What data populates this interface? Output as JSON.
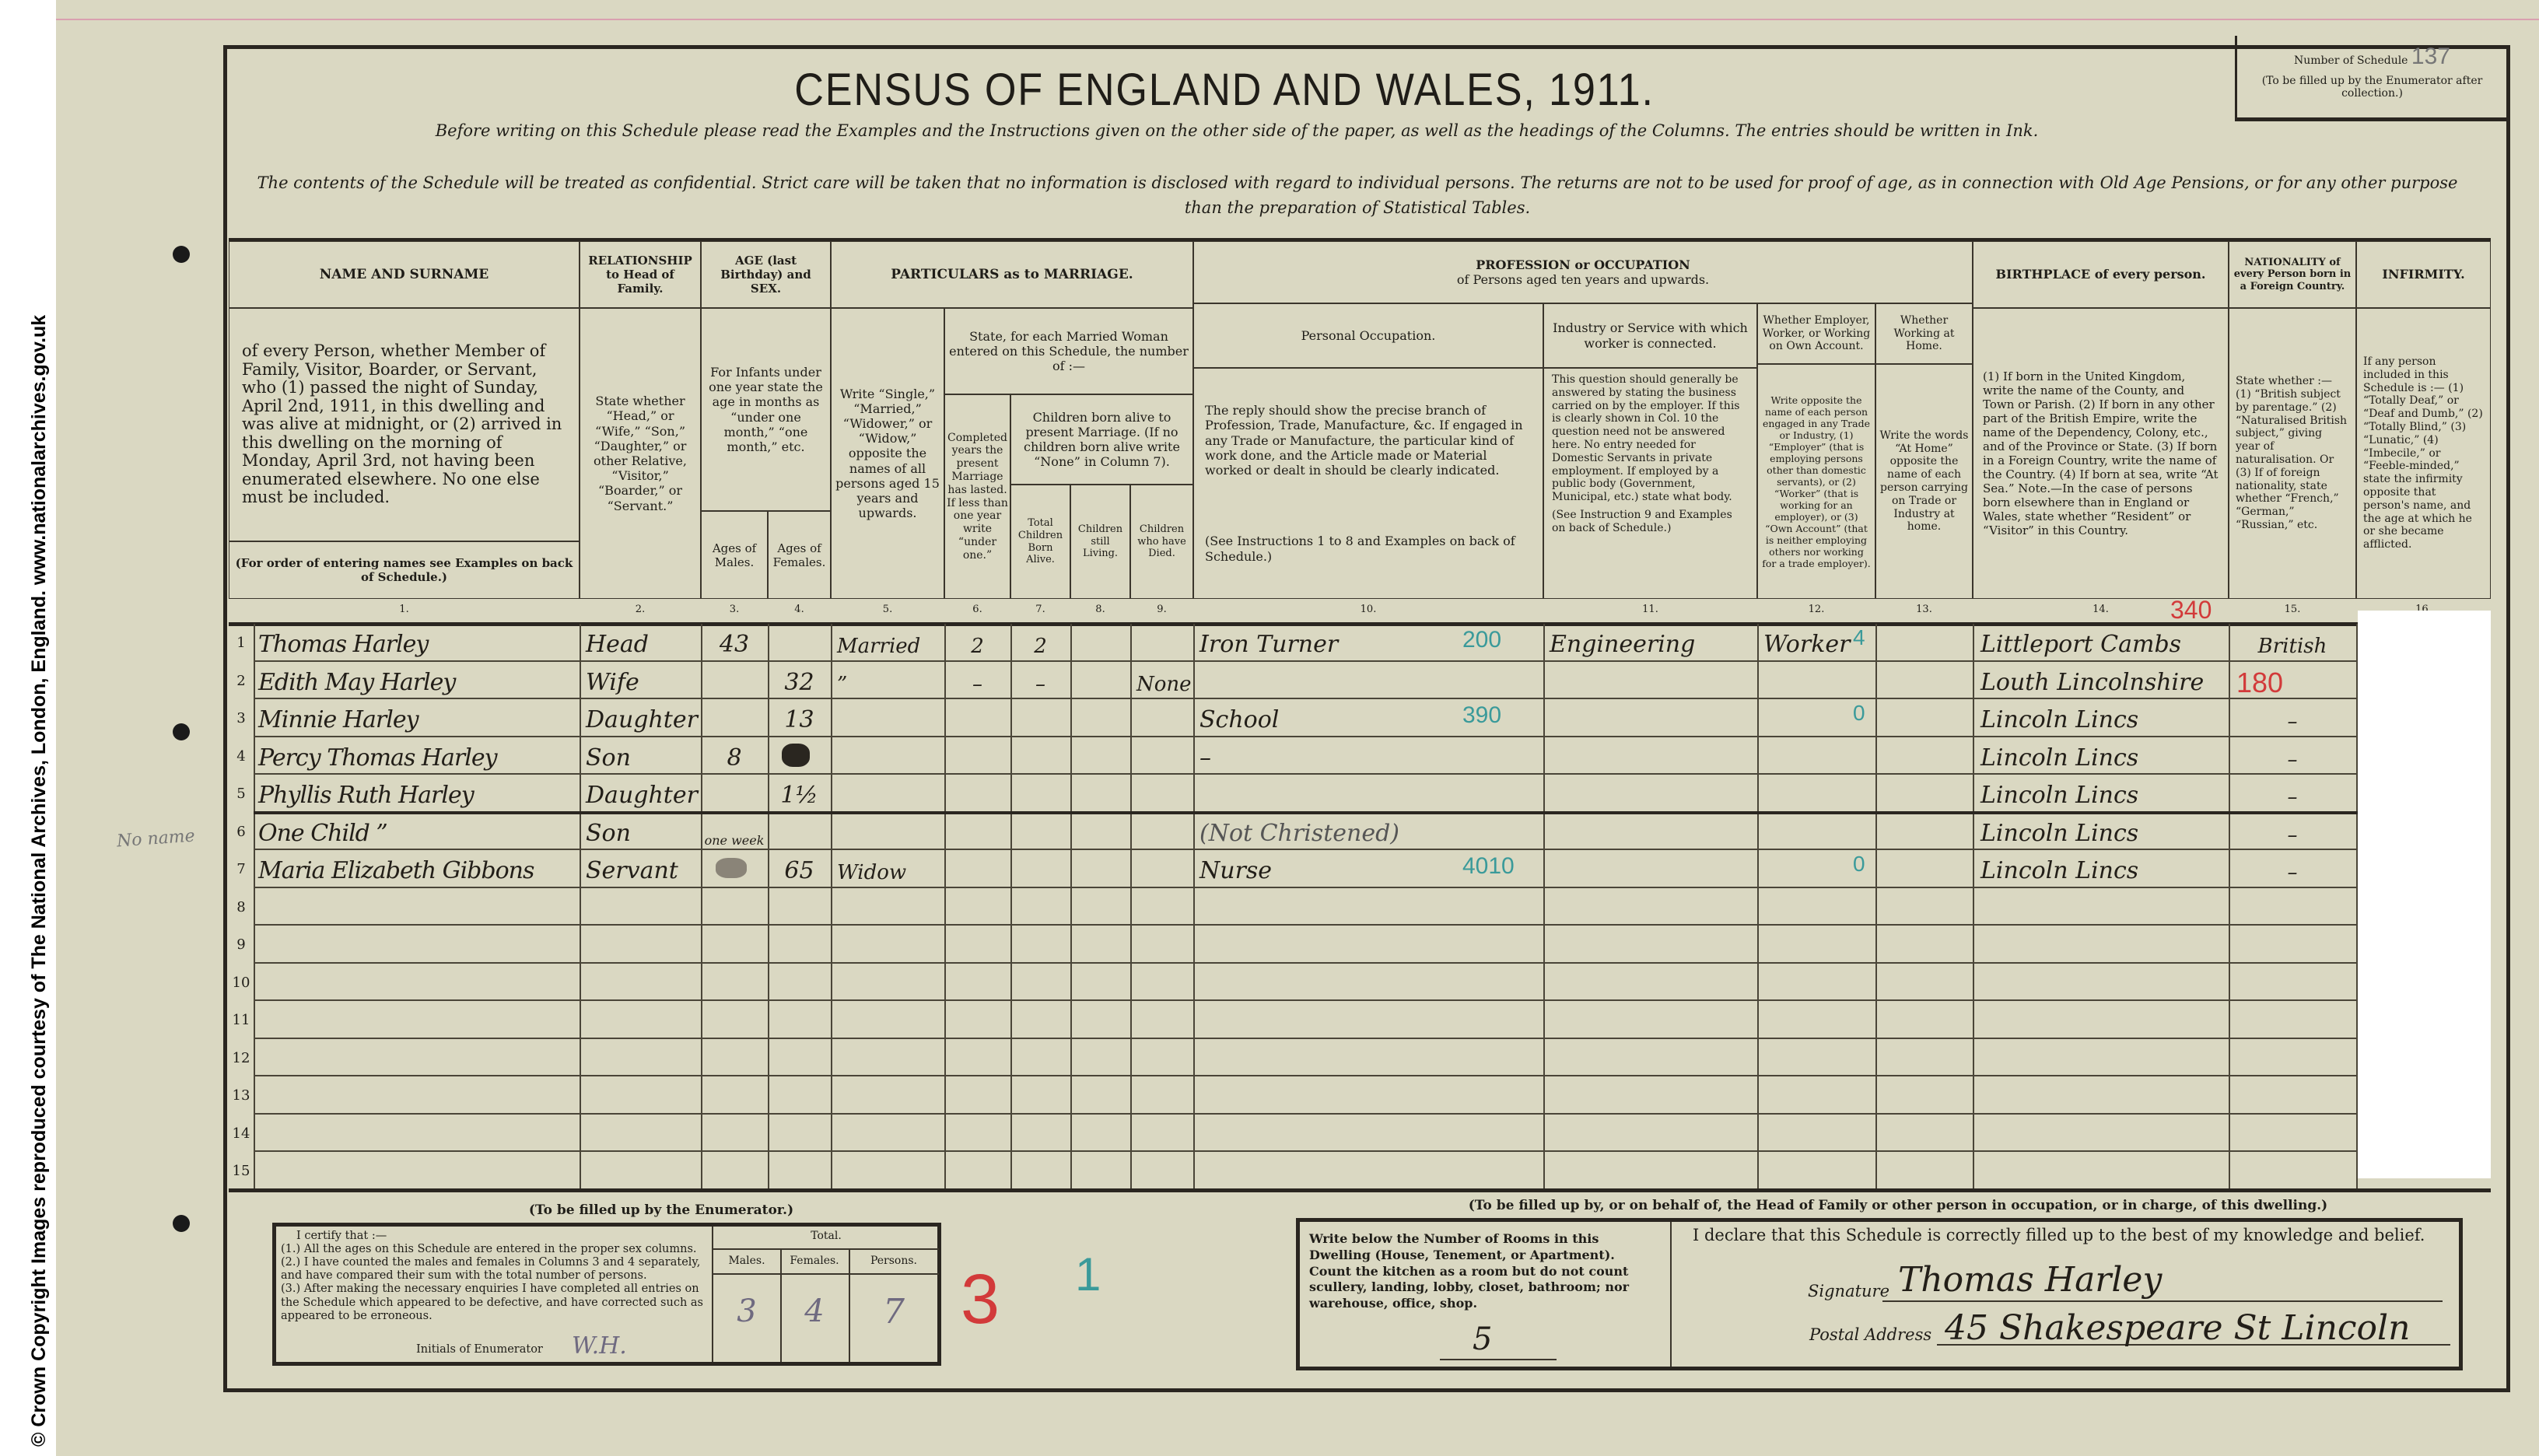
{
  "copyright": "© Crown Copyright Images reproduced courtesy of The National Archives, London, England. www.nationalarchives.gov.uk",
  "header": {
    "title": "CENSUS OF ENGLAND AND WALES, 1911.",
    "instruction_1": "Before writing on this Schedule please read the Examples and the Instructions given on the other side of the paper, as well as the headings of the Columns. The entries should be written in Ink.",
    "instruction_2": "The contents of the Schedule will be treated as confidential. Strict care will be taken that no information is disclosed with regard to individual persons. The returns are not to be used for proof of age, as in connection with Old Age Pensions, or for any other purpose than the preparation of Statistical Tables.",
    "schedule_number_label": "Number of Schedule",
    "schedule_number_value": "137",
    "schedule_number_note": "(To be filled up by the Enumerator after collection.)"
  },
  "columns": {
    "name_title": "NAME AND SURNAME",
    "name_desc": "of every Person, whether Member of Family, Visitor, Boarder, or Servant, who (1) passed the night of Sunday, April 2nd, 1911, in this dwelling and was alive at midnight, or (2) arrived in this dwelling on the morning of Monday, April 3rd, not having been enumerated elsewhere. No one else must be included.",
    "name_note": "(For order of entering names see Examples on back of Schedule.)",
    "relationship_title": "RELATIONSHIP to Head of Family.",
    "relationship_desc": "State whether “Head,” or “Wife,” “Son,” “Daughter,” or other Relative, “Visitor,” “Boarder,” or “Servant.”",
    "age_title": "AGE (last Birthday) and SEX.",
    "age_desc": "For Infants under one year state the age in months as “under one month,” “one month,” etc.",
    "age_males": "Ages of Males.",
    "age_females": "Ages of Females.",
    "marriage_title": "PARTICULARS as to MARRIAGE.",
    "marriage_write": "Write “Single,” “Married,” “Widower,” or “Widow,” opposite the names of all persons aged 15 years and upwards.",
    "marriage_state": "State, for each Married Woman entered on this Schedule, the number of :—",
    "marriage_completed": "Completed years the present Marriage has lasted. If less than one year write “under one.”",
    "marriage_children": "Children born alive to present Marriage. (If no children born alive write “None” in Column 7).",
    "children_total": "Total Children Born Alive.",
    "children_living": "Children still Living.",
    "children_died": "Children who have Died.",
    "profession_title": "PROFESSION or OCCUPATION",
    "profession_sub": "of Persons aged ten years and upwards.",
    "personal_occupation": "Personal Occupation.",
    "personal_occupation_desc": "The reply should show the precise branch of Profession, Trade, Manufacture, &c. If engaged in any Trade or Manufacture, the particular kind of work done, and the Article made or Material worked or dealt in should be clearly indicated.",
    "personal_occupation_note": "(See Instructions 1 to 8 and Examples on back of Schedule.)",
    "industry": "Industry or Service with which worker is connected.",
    "industry_desc": "This question should generally be answered by stating the business carried on by the employer. If this is clearly shown in Col. 10 the question need not be answered here. No entry needed for Domestic Servants in private employment. If employed by a public body (Government, Municipal, etc.) state what body.",
    "industry_note": "(See Instruction 9 and Examples on back of Schedule.)",
    "employer": "Whether Employer, Worker, or Working on Own Account.",
    "employer_desc": "Write opposite the name of each person engaged in any Trade or Industry, (1) “Employer” (that is employing persons other than domestic servants), or (2) “Worker” (that is working for an employer), or (3) “Own Account” (that is neither employing others nor working for a trade employer).",
    "at_home": "Whether Working at Home.",
    "at_home_desc": "Write the words “At Home” opposite the name of each person carrying on Trade or Industry at home.",
    "birthplace_title": "BIRTHPLACE of every person.",
    "birthplace_desc": "(1) If born in the United Kingdom, write the name of the County, and Town or Parish. (2) If born in any other part of the British Empire, write the name of the Dependency, Colony, etc., and of the Province or State. (3) If born in a Foreign Country, write the name of the Country. (4) If born at sea, write “At Sea.” Note.—In the case of persons born elsewhere than in England or Wales, state whether “Resident” or “Visitor” in this Country.",
    "nationality_title": "NATIONALITY of every Person born in a Foreign Country.",
    "nationality_desc": "State whether :— (1) “British subject by parentage.” (2) “Naturalised British subject,” giving year of naturalisation. Or (3) If of foreign nationality, state whether “French,” “German,” “Russian,” etc.",
    "infirmity_title": "INFIRMITY.",
    "infirmity_desc": "If any person included in this Schedule is :— (1) “Totally Deaf,” or “Deaf and Dumb,” (2) “Totally Blind,” (3) “Lunatic,” (4) “Imbecile,” or “Feeble-minded,” state the infirmity opposite that person's name, and the age at which he or she became afflicted.",
    "numbers": [
      "1.",
      "2.",
      "3.",
      "4.",
      "5.",
      "6.",
      "7.",
      "8.",
      "9.",
      "10.",
      "11.",
      "12.",
      "13.",
      "14.",
      "15.",
      "16."
    ]
  },
  "row_numbers": [
    "1",
    "2",
    "3",
    "4",
    "5",
    "6",
    "7",
    "8",
    "9",
    "10",
    "11",
    "12",
    "13",
    "14",
    "15"
  ],
  "rows": [
    {
      "name": "Thomas Harley",
      "relationship": "Head",
      "age_male": "43",
      "age_female": "",
      "marriage": "Married",
      "years_married": "2",
      "children_born": "2",
      "children_living": "",
      "children_died": "",
      "occupation": "Iron Turner",
      "occupation_code": "200",
      "industry": "Engineering",
      "employment": "Worker",
      "employment_code": "4",
      "at_home": "",
      "birthplace": "Littleport Cambs",
      "birthplace_code": "340",
      "nationality": "British",
      "infirmity": ""
    },
    {
      "name": "Edith May Harley",
      "relationship": "Wife",
      "age_male": "",
      "age_female": "32",
      "marriage": "”",
      "years_married": "–",
      "children_born": "–",
      "children_living": "",
      "children_died": "None",
      "occupation": "",
      "occupation_code": "",
      "industry": "",
      "employment": "",
      "employment_code": "",
      "at_home": "",
      "birthplace": "Louth Lincolnshire",
      "birthplace_code": "180",
      "nationality": "",
      "infirmity": ""
    },
    {
      "name": "Minnie Harley",
      "relationship": "Daughter",
      "age_male": "",
      "age_female": "13",
      "marriage": "",
      "years_married": "",
      "children_born": "",
      "children_living": "",
      "children_died": "",
      "occupation": "School",
      "occupation_code": "390",
      "industry": "",
      "employment": "",
      "employment_code": "0",
      "at_home": "",
      "birthplace": "Lincoln Lincs",
      "birthplace_code": "",
      "nationality": "–",
      "infirmity": ""
    },
    {
      "name": "Percy Thomas Harley",
      "relationship": "Son",
      "age_male": "8",
      "age_female": "",
      "marriage": "",
      "years_married": "",
      "children_born": "",
      "children_living": "",
      "children_died": "",
      "occupation": "–",
      "occupation_code": "",
      "industry": "",
      "employment": "",
      "employment_code": "",
      "at_home": "",
      "birthplace": "Lincoln Lincs",
      "birthplace_code": "",
      "nationality": "–",
      "infirmity": ""
    },
    {
      "name": "Phyllis Ruth Harley",
      "relationship": "Daughter",
      "age_male": "",
      "age_female": "1½",
      "marriage": "",
      "years_married": "",
      "children_born": "",
      "children_living": "",
      "children_died": "",
      "occupation": "",
      "occupation_code": "",
      "industry": "",
      "employment": "",
      "employment_code": "",
      "at_home": "",
      "birthplace": "Lincoln Lincs",
      "birthplace_code": "",
      "nationality": "–",
      "infirmity": ""
    },
    {
      "name": "One Child ”",
      "relationship": "Son",
      "age_male": "one week",
      "age_female": "",
      "marriage": "",
      "years_married": "",
      "children_born": "",
      "children_living": "",
      "children_died": "",
      "occupation": "(Not Christened)",
      "occupation_code": "",
      "industry": "",
      "employment": "",
      "employment_code": "",
      "at_home": "",
      "birthplace": "Lincoln Lincs",
      "birthplace_code": "",
      "nationality": "–",
      "infirmity": ""
    },
    {
      "name": "Maria Elizabeth Gibbons",
      "relationship": "Servant",
      "age_male": "",
      "age_female": "65",
      "marriage": "Widow",
      "years_married": "",
      "children_born": "",
      "children_living": "",
      "children_died": "",
      "occupation": "Nurse",
      "occupation_code": "4010",
      "industry": "",
      "employment": "",
      "employment_code": "0",
      "at_home": "",
      "birthplace": "Lincoln Lincs",
      "birthplace_code": "",
      "nationality": "–",
      "infirmity": ""
    }
  ],
  "margin_note": "No name",
  "enumerator": {
    "heading": "(To be filled up by the Enumerator.)",
    "certify": "I certify that :—",
    "item1": "(1.) All the ages on this Schedule are entered in the proper sex columns.",
    "item2": "(2.) I have counted the males and females in Columns 3 and 4 separately, and have compared their sum with the total number of persons.",
    "item3": "(3.) After making the necessary enquiries I have completed all entries on the Schedule which appeared to be defective, and have corrected such as appeared to be erroneous.",
    "initials_label": "Initials of Enumerator",
    "initials": "W.H.",
    "total_label": "Total.",
    "males_label": "Males.",
    "females_label": "Females.",
    "persons_label": "Persons.",
    "males": "3",
    "females": "4",
    "persons": "7",
    "red_mark": "3",
    "green_mark": "1"
  },
  "householder": {
    "heading": "(To be filled up by, or on behalf of, the Head of Family or other person in occupation, or in charge, of this dwelling.)",
    "rooms_instruction": "Write below the Number of Rooms in this Dwelling (House, Tenement, or Apartment). Count the kitchen as a room but do not count scullery, landing, lobby, closet, bathroom; nor warehouse, office, shop.",
    "rooms": "5",
    "declaration": "I declare that this Schedule is correctly filled up to the best of my knowledge and belief.",
    "signature_label": "Signature",
    "signature": "Thomas Harley",
    "address_label": "Postal Address",
    "address": "45 Shakespeare St Lincoln"
  },
  "colors": {
    "paper": "#dad8c2",
    "ink": "#221e18",
    "teal_code": "#3a9a9a",
    "red_code": "#d23a3a"
  }
}
